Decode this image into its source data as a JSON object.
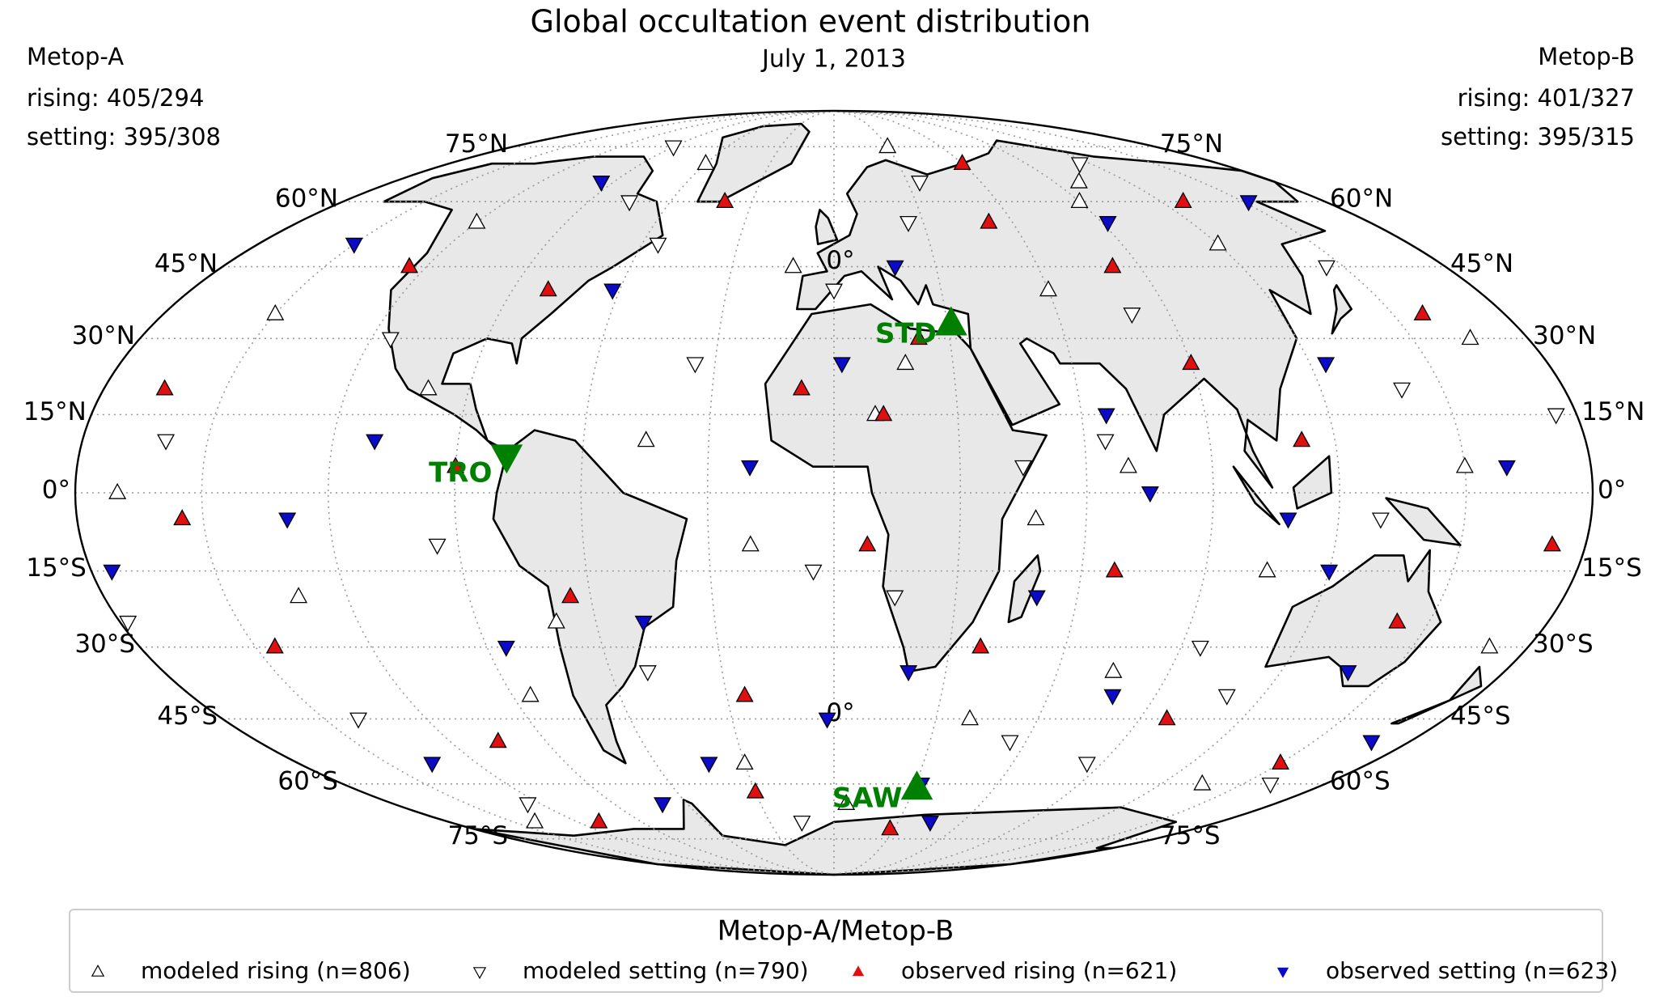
{
  "chart_data": {
    "type": "map",
    "projection": "mollweide",
    "title": "Global occultation event distribution",
    "subtitle": "July 1, 2013",
    "left_info": {
      "name": "Metop-A",
      "lines": [
        "rising: 405/294",
        "setting: 395/308"
      ]
    },
    "right_info": {
      "name": "Metop-B",
      "lines": [
        "rising: 401/327",
        "setting: 395/315"
      ]
    },
    "parallels": [
      {
        "value": 75,
        "label": "75°N"
      },
      {
        "value": 60,
        "label": "60°N"
      },
      {
        "value": 45,
        "label": "45°N"
      },
      {
        "value": 30,
        "label": "30°N"
      },
      {
        "value": 15,
        "label": "15°N"
      },
      {
        "value": 0,
        "label": "0°"
      },
      {
        "value": -15,
        "label": "15°S"
      },
      {
        "value": -30,
        "label": "30°S"
      },
      {
        "value": -45,
        "label": "45°S"
      },
      {
        "value": -60,
        "label": "60°S"
      },
      {
        "value": -75,
        "label": "75°S"
      }
    ],
    "meridian_grid": [
      -150,
      -120,
      -90,
      -60,
      -30,
      30,
      60,
      90,
      120,
      150
    ],
    "meridian_label": {
      "value": 0,
      "label": "0°"
    },
    "grid": true,
    "land_color": "#e8e8e8",
    "legend_title": "Metop-A/Metop-B",
    "series": [
      {
        "name": "modeled rising (n=806)",
        "marker": "up",
        "color": "#ffffff",
        "edgecolor": "#000000",
        "lon": [
          -170,
          -150,
          -132,
          -120,
          -100,
          -85,
          -60,
          -45,
          -30,
          -12,
          5,
          18,
          30,
          48,
          60,
          75,
          90,
          105,
          120,
          135,
          150,
          165,
          -140,
          -70,
          10,
          40,
          100,
          -20,
          70,
          170
        ],
        "lat": [
          0,
          35,
          -20,
          55,
          20,
          -40,
          70,
          10,
          -55,
          45,
          -65,
          25,
          75,
          -5,
          40,
          -35,
          60,
          -15,
          50,
          -60,
          5,
          30,
          -70,
          -25,
          15,
          -45,
          65,
          -10,
          5,
          -30
        ]
      },
      {
        "name": "modeled setting (n=790)",
        "marker": "down",
        "color": "#ffffff",
        "edgecolor": "#000000",
        "lon": [
          -160,
          -140,
          -115,
          -95,
          -75,
          -50,
          -35,
          -15,
          0,
          15,
          25,
          45,
          55,
          80,
          95,
          115,
          130,
          145,
          160,
          175,
          -125,
          -55,
          -5,
          35,
          85,
          140,
          -178,
          65,
          110,
          -90
        ],
        "lat": [
          10,
          -45,
          30,
          -10,
          60,
          -35,
          25,
          -70,
          40,
          -20,
          55,
          5,
          -50,
          35,
          -30,
          70,
          -5,
          45,
          -60,
          15,
          -65,
          50,
          -15,
          65,
          -55,
          20,
          -25,
          10,
          -40,
          75
        ]
      },
      {
        "name": "observed rising (n=621)",
        "marker": "up",
        "color": "#e01010",
        "edgecolor": "#000000",
        "lon": [
          -165,
          -145,
          -125,
          -105,
          -90,
          -65,
          -40,
          -25,
          -8,
          8,
          22,
          38,
          52,
          68,
          82,
          98,
          112,
          128,
          142,
          158,
          172,
          -110,
          -30,
          12,
          60,
          150,
          -155,
          90,
          28,
          -80
        ],
        "lat": [
          20,
          -30,
          45,
          -50,
          5,
          -20,
          60,
          -40,
          20,
          -10,
          30,
          -30,
          55,
          -15,
          45,
          -45,
          10,
          60,
          -25,
          35,
          -10,
          -70,
          -62,
          15,
          70,
          -55,
          -5,
          25,
          -72,
          40
        ]
      },
      {
        "name": "observed setting (n=623)",
        "marker": "down",
        "color": "#0a0ac8",
        "edgecolor": "#000000",
        "lon": [
          -175,
          -150,
          -130,
          -110,
          -85,
          -62,
          -42,
          -20,
          -2,
          18,
          32,
          50,
          66,
          78,
          92,
          108,
          124,
          138,
          152,
          168,
          -135,
          -70,
          2,
          45,
          120,
          -95,
          75,
          160,
          -48,
          20
        ],
        "lat": [
          -15,
          50,
          -5,
          10,
          -30,
          40,
          -55,
          5,
          -45,
          45,
          -60,
          -20,
          15,
          -40,
          55,
          -5,
          25,
          -35,
          60,
          -50,
          -55,
          -65,
          25,
          -70,
          -15,
          65,
          0,
          5,
          -25,
          -35
        ]
      }
    ],
    "station_color": "#008000",
    "stations": [
      {
        "name": "STD",
        "lon": 31,
        "lat": 33,
        "marker": "up"
      },
      {
        "name": "TRO",
        "lon": -78,
        "lat": 7,
        "marker": "down"
      },
      {
        "name": "SAW",
        "lon": 31,
        "lat": -61,
        "marker": "up"
      }
    ]
  }
}
